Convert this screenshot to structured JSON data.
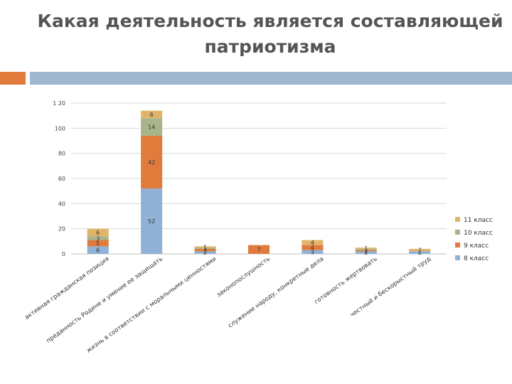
{
  "title": "Какая деятельность является составляющей патриотизма",
  "colors": {
    "accent_orange": "#e07b3c",
    "accent_blue": "#9fb8d0",
    "series": [
      "#8fb2d6",
      "#e07b3c",
      "#a8b48a",
      "#e0b56a"
    ]
  },
  "chart_data": {
    "type": "bar",
    "stacked": true,
    "title": "",
    "xlabel": "",
    "ylabel": "",
    "ylim": [
      0,
      120
    ],
    "yticks": [
      0,
      20,
      40,
      60,
      80,
      100,
      120
    ],
    "ytick_labels": [
      "0",
      "20",
      "40",
      "60",
      "80",
      "100",
      "1 20"
    ],
    "grid": true,
    "legend_position": "right",
    "categories": [
      "активная гражданская позиция",
      "преданность Родине и умение ее защищать",
      "жизнь в соответствии с моральными ценностями",
      "законопослушность",
      "служение народу, конкретные дела",
      "готовность жертвовать",
      "честный и бескорыстный труд"
    ],
    "series": [
      {
        "name": "8 класс",
        "values": [
          6,
          52,
          2,
          0,
          3,
          2,
          2
        ]
      },
      {
        "name": "9 класс",
        "values": [
          5,
          42,
          2,
          7,
          4,
          1,
          0
        ]
      },
      {
        "name": "10 класс",
        "values": [
          3,
          14,
          1,
          0,
          0,
          1,
          0
        ]
      },
      {
        "name": "11 класс",
        "values": [
          6,
          6,
          1,
          0,
          4,
          1,
          2
        ]
      }
    ],
    "segment_labels": [
      [
        "6",
        "5",
        "3",
        "6"
      ],
      [
        "52",
        "42",
        "14",
        "6"
      ],
      [
        "2",
        "2",
        "1",
        "1"
      ],
      [
        "",
        "7",
        "",
        ""
      ],
      [
        "3",
        "4",
        "",
        "4"
      ],
      [
        "2",
        "1",
        "1",
        "1"
      ],
      [
        "2",
        "",
        "",
        "2"
      ]
    ]
  }
}
